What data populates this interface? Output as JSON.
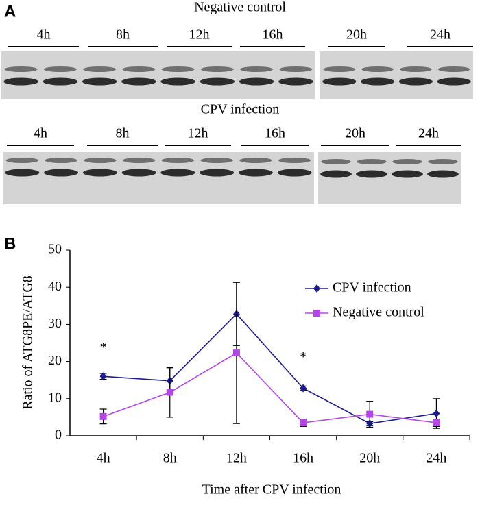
{
  "panel_a": {
    "label": "A",
    "rows": [
      {
        "title": "Negative control",
        "times": [
          "4h",
          "8h",
          "12h",
          "16h",
          "20h",
          "24h"
        ]
      },
      {
        "title": "CPV infection",
        "times": [
          "4h",
          "8h",
          "12h",
          "16h",
          "20h",
          "24h"
        ]
      }
    ]
  },
  "chart_data": {
    "type": "line",
    "panel_label": "B",
    "x_label": "Time after CPV infection",
    "y_label": "Ratio of ATG8PE/ATG8",
    "categories": [
      "4h",
      "8h",
      "12h",
      "16h",
      "20h",
      "24h"
    ],
    "ylim": [
      0,
      50
    ],
    "yticks": [
      0,
      10,
      20,
      30,
      40,
      50
    ],
    "grid": false,
    "legend": "upper right",
    "series": [
      {
        "name": "CPV infection",
        "color": "#1c1c8a",
        "marker": "diamond",
        "values": [
          16,
          14.8,
          32.8,
          12.8,
          3.3,
          6.0
        ],
        "errors": [
          0.8,
          3.5,
          8.5,
          0.6,
          0.5,
          4.0
        ]
      },
      {
        "name": "Negative control",
        "color": "#b445e6",
        "marker": "square",
        "values": [
          5.2,
          11.7,
          22.3,
          3.5,
          5.8,
          3.5
        ],
        "errors": [
          2.0,
          6.7,
          19.0,
          1.0,
          3.5,
          1.0
        ]
      }
    ],
    "annotations": [
      {
        "text": "*",
        "category": 0,
        "y": 23.5
      },
      {
        "text": "*",
        "category": 3,
        "y": 21
      }
    ]
  }
}
